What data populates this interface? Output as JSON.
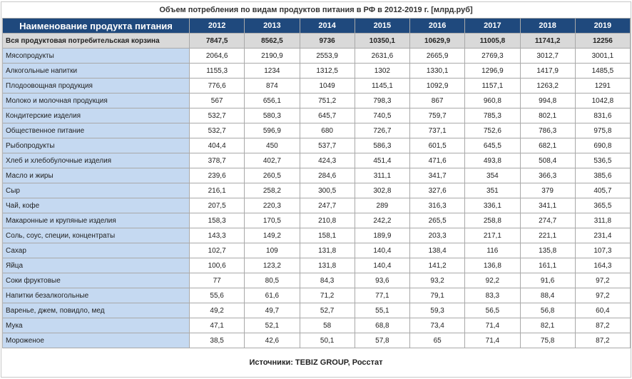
{
  "title": "Объем потребления по видам продуктов питания в РФ в 2012-2019 г. [млрд.руб]",
  "header": {
    "name_col": "Наименование продукта питания",
    "years": [
      "2012",
      "2013",
      "2014",
      "2015",
      "2016",
      "2017",
      "2018",
      "2019"
    ]
  },
  "total": {
    "name": "Вся продуктовая потребительская корзина",
    "values": [
      "7847,5",
      "8562,5",
      "9736",
      "10350,1",
      "10629,9",
      "11005,8",
      "11741,2",
      "12256"
    ]
  },
  "rows": [
    {
      "name": "Мясопродукты",
      "values": [
        "2064,6",
        "2190,9",
        "2553,9",
        "2631,6",
        "2665,9",
        "2769,3",
        "3012,7",
        "3001,1"
      ]
    },
    {
      "name": "Алкогольные напитки",
      "values": [
        "1155,3",
        "1234",
        "1312,5",
        "1302",
        "1330,1",
        "1296,9",
        "1417,9",
        "1485,5"
      ]
    },
    {
      "name": "Плодоовощная продукция",
      "values": [
        "776,6",
        "874",
        "1049",
        "1145,1",
        "1092,9",
        "1157,1",
        "1263,2",
        "1291"
      ]
    },
    {
      "name": "Молоко и молочная продукция",
      "values": [
        "567",
        "656,1",
        "751,2",
        "798,3",
        "867",
        "960,8",
        "994,8",
        "1042,8"
      ]
    },
    {
      "name": "Кондитерские изделия",
      "values": [
        "532,7",
        "580,3",
        "645,7",
        "740,5",
        "759,7",
        "785,3",
        "802,1",
        "831,6"
      ]
    },
    {
      "name": "Общественное питание",
      "values": [
        "532,7",
        "596,9",
        "680",
        "726,7",
        "737,1",
        "752,6",
        "786,3",
        "975,8"
      ]
    },
    {
      "name": "Рыбопродукты",
      "values": [
        "404,4",
        "450",
        "537,7",
        "586,3",
        "601,5",
        "645,5",
        "682,1",
        "690,8"
      ]
    },
    {
      "name": "Хлеб и хлебобулочные изделия",
      "values": [
        "378,7",
        "402,7",
        "424,3",
        "451,4",
        "471,6",
        "493,8",
        "508,4",
        "536,5"
      ]
    },
    {
      "name": "Масло и жиры",
      "values": [
        "239,6",
        "260,5",
        "284,6",
        "311,1",
        "341,7",
        "354",
        "366,3",
        "385,6"
      ]
    },
    {
      "name": "Сыр",
      "values": [
        "216,1",
        "258,2",
        "300,5",
        "302,8",
        "327,6",
        "351",
        "379",
        "405,7"
      ]
    },
    {
      "name": "Чай, кофе",
      "values": [
        "207,5",
        "220,3",
        "247,7",
        "289",
        "316,3",
        "336,1",
        "341,1",
        "365,5"
      ]
    },
    {
      "name": "Макаронные и крупяные изделия",
      "values": [
        "158,3",
        "170,5",
        "210,8",
        "242,2",
        "265,5",
        "258,8",
        "274,7",
        "311,8"
      ]
    },
    {
      "name": "Соль, соус, специи, концентраты",
      "values": [
        "143,3",
        "149,2",
        "158,1",
        "189,9",
        "203,3",
        "217,1",
        "221,1",
        "231,4"
      ]
    },
    {
      "name": "Сахар",
      "values": [
        "102,7",
        "109",
        "131,8",
        "140,4",
        "138,4",
        "116",
        "135,8",
        "107,3"
      ]
    },
    {
      "name": "Яйца",
      "values": [
        "100,6",
        "123,2",
        "131,8",
        "140,4",
        "141,2",
        "136,8",
        "161,1",
        "164,3"
      ]
    },
    {
      "name": "Соки фруктовые",
      "values": [
        "77",
        "80,5",
        "84,3",
        "93,6",
        "93,2",
        "92,2",
        "91,6",
        "97,2"
      ]
    },
    {
      "name": "Напитки безалкогольные",
      "values": [
        "55,6",
        "61,6",
        "71,2",
        "77,1",
        "79,1",
        "83,3",
        "88,4",
        "97,2"
      ]
    },
    {
      "name": "Варенье, джем, повидло, мед",
      "values": [
        "49,2",
        "49,7",
        "52,7",
        "55,1",
        "59,3",
        "56,5",
        "56,8",
        "60,4"
      ]
    },
    {
      "name": "Мука",
      "values": [
        "47,1",
        "52,1",
        "58",
        "68,8",
        "73,4",
        "71,4",
        "82,1",
        "87,2"
      ]
    },
    {
      "name": "Мороженое",
      "values": [
        "38,5",
        "42,6",
        "50,1",
        "57,8",
        "65",
        "71,4",
        "75,8",
        "87,2"
      ]
    }
  ],
  "footer": "Источники: TEBIZ GROUP, Росстат"
}
